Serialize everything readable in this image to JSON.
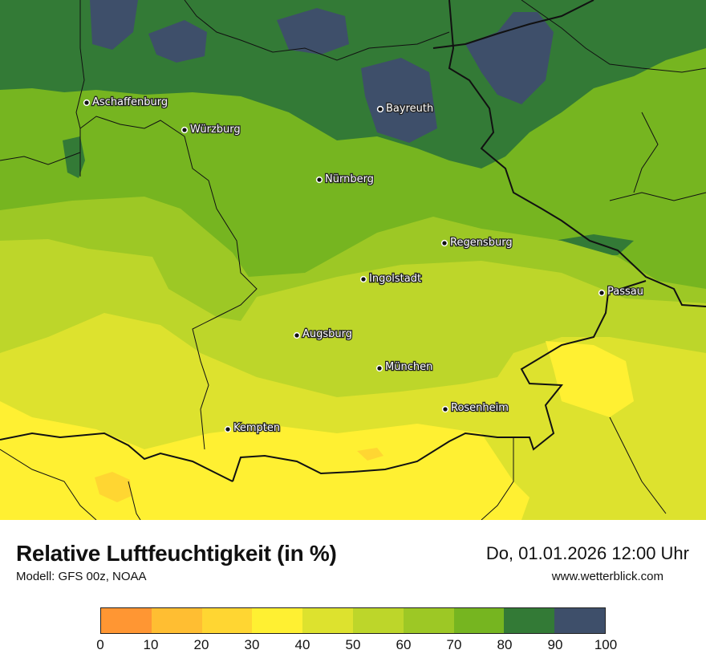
{
  "map": {
    "cities": [
      {
        "name": "Aschaffenburg"
      },
      {
        "name": "Würzburg"
      },
      {
        "name": "Bayreuth"
      },
      {
        "name": "Nürnberg"
      },
      {
        "name": "Regensburg"
      },
      {
        "name": "Ingolstadt"
      },
      {
        "name": "Passau"
      },
      {
        "name": "Augsburg"
      },
      {
        "name": "München"
      },
      {
        "name": "Rosenheim"
      },
      {
        "name": "Kempten"
      }
    ]
  },
  "footer": {
    "title": "Relative Luftfeuchtigkeit (in %)",
    "model": "Modell: GFS 00z, NOAA",
    "datetime": "Do, 01.01.2026 12:00 Uhr",
    "website": "www.wetterblick.com"
  },
  "legend": {
    "ticks": [
      "0",
      "10",
      "20",
      "30",
      "40",
      "50",
      "60",
      "70",
      "80",
      "90",
      "100"
    ],
    "colors": [
      "#ff9633",
      "#ffbe32",
      "#ffd632",
      "#fff032",
      "#dde22e",
      "#bdd62a",
      "#9dc825",
      "#76b520",
      "#337a36",
      "#3e4f6a"
    ]
  }
}
